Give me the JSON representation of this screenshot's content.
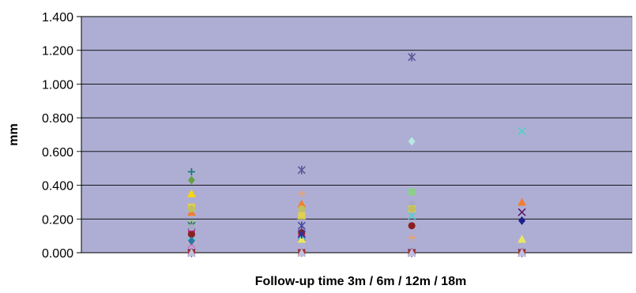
{
  "chart_data": {
    "type": "scatter",
    "title": "",
    "xlabel": "Follow-up time 3m / 6m / 12m / 18m",
    "ylabel": "mm",
    "x": [
      1,
      2,
      3,
      4
    ],
    "xlim": [
      0,
      5
    ],
    "ylim": [
      0,
      1.4
    ],
    "yticks": [
      {
        "value": 0,
        "label": "0.000"
      },
      {
        "value": 0.2,
        "label": "0.200"
      },
      {
        "value": 0.4,
        "label": "0.400"
      },
      {
        "value": 0.6,
        "label": "0.600"
      },
      {
        "value": 0.8,
        "label": "0.800"
      },
      {
        "value": 1.0,
        "label": "1.000"
      },
      {
        "value": 1.2,
        "label": "1.200"
      },
      {
        "value": 1.4,
        "label": "1.400"
      }
    ],
    "grid": true,
    "legend": "none",
    "plot_background": "#aeaed4",
    "series": [
      {
        "marker": "diamond",
        "color": "#1f1f8c",
        "values": [
          0.0,
          0.0,
          0.0,
          0.19
        ]
      },
      {
        "marker": "square",
        "color": "#c0308c",
        "values": [
          0.12,
          0.09,
          0.0,
          0.0
        ]
      },
      {
        "marker": "triangle",
        "color": "#e8e860",
        "values": [
          0.08,
          0.08,
          0.0,
          0.08
        ]
      },
      {
        "marker": "x",
        "color": "#52d0c8",
        "values": [
          0.1,
          0.1,
          0.22,
          0.72
        ]
      },
      {
        "marker": "star",
        "color": "#5a5a9a",
        "values": [
          0.0,
          0.49,
          1.16,
          0.0
        ]
      },
      {
        "marker": "circle",
        "color": "#8a2020",
        "values": [
          0.11,
          0.12,
          0.16,
          0.0
        ]
      },
      {
        "marker": "plus",
        "color": "#f0a060",
        "values": [
          0.0,
          0.35,
          0.09,
          0.0
        ]
      },
      {
        "marker": "diamond",
        "color": "#6aa040",
        "values": [
          0.43,
          0.0,
          0.0,
          0.0
        ]
      },
      {
        "marker": "square",
        "color": "#8ad088",
        "values": [
          0.17,
          0.0,
          0.36,
          0.0
        ]
      },
      {
        "marker": "triangle",
        "color": "#f8d800",
        "values": [
          0.35,
          0.22,
          0.0,
          0.0
        ]
      },
      {
        "marker": "x",
        "color": "#5c1a6a",
        "values": [
          0.0,
          0.0,
          0.0,
          0.24
        ]
      },
      {
        "marker": "star",
        "color": "#4a4aa0",
        "values": [
          0.16,
          0.16,
          0.0,
          0.0
        ]
      },
      {
        "marker": "circle",
        "color": "#a8a8c8",
        "values": [
          0.15,
          0.0,
          0.29,
          0.0
        ]
      },
      {
        "marker": "plus",
        "color": "#1a7a78",
        "values": [
          0.48,
          0.0,
          0.0,
          0.0
        ]
      },
      {
        "marker": "diamond",
        "color": "#b8e8e0",
        "values": [
          0.0,
          0.0,
          0.66,
          0.0
        ]
      },
      {
        "marker": "square",
        "color": "#e0d050",
        "values": [
          0.27,
          0.22,
          0.26,
          0.0
        ]
      },
      {
        "marker": "triangle",
        "color": "#f08030",
        "values": [
          0.24,
          0.29,
          0.0,
          0.3
        ]
      },
      {
        "marker": "x",
        "color": "#d870c0",
        "values": [
          0.05,
          0.0,
          0.0,
          0.0
        ]
      },
      {
        "marker": "star",
        "color": "#3030a0",
        "values": [
          0.0,
          0.11,
          0.0,
          0.0
        ]
      },
      {
        "marker": "circle",
        "color": "#c0c060",
        "values": [
          0.26,
          0.26,
          0.26,
          0.0
        ]
      },
      {
        "marker": "plus",
        "color": "#2a8a40",
        "values": [
          0.0,
          0.0,
          0.0,
          0.0
        ]
      },
      {
        "marker": "diamond",
        "color": "#2a7aa8",
        "values": [
          0.07,
          0.0,
          0.0,
          0.0
        ]
      },
      {
        "marker": "square",
        "color": "#a03030",
        "values": [
          0.0,
          0.0,
          0.0,
          0.0
        ]
      },
      {
        "marker": "triangle",
        "color": "#c0c0e0",
        "values": [
          0.0,
          0.0,
          0.0,
          0.0
        ]
      }
    ]
  }
}
